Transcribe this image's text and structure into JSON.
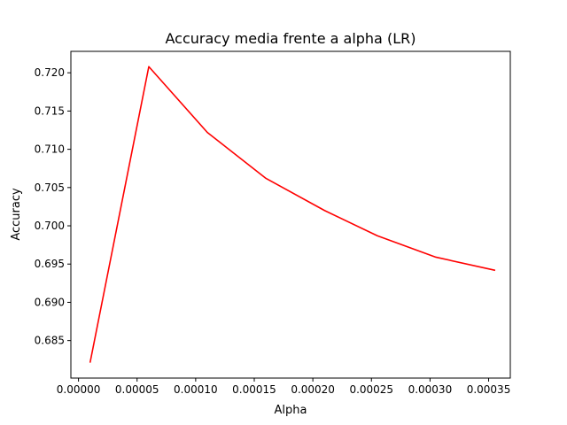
{
  "chart_data": {
    "type": "line",
    "title": "Accuracy media frente a alpha (LR)",
    "xlabel": "Alpha",
    "ylabel": "Accuracy",
    "grid": false,
    "xlim": [
      -6.5e-06,
      0.0003685
    ],
    "ylim": [
      0.6801,
      0.7228
    ],
    "x_ticks": [
      0.0,
      5e-05,
      0.0001,
      0.00015,
      0.0002,
      0.00025,
      0.0003,
      0.00035
    ],
    "x_tick_labels": [
      "0.00000",
      "0.00005",
      "0.00010",
      "0.00015",
      "0.00020",
      "0.00025",
      "0.00030",
      "0.00035"
    ],
    "y_ticks": [
      0.685,
      0.69,
      0.695,
      0.7,
      0.705,
      0.71,
      0.715,
      0.72
    ],
    "y_tick_labels": [
      "0.685",
      "0.690",
      "0.695",
      "0.700",
      "0.705",
      "0.710",
      "0.715",
      "0.720"
    ],
    "series": [
      {
        "color": "#ff0000",
        "x": [
          1e-05,
          6e-05,
          0.00011,
          0.00016,
          0.00021,
          0.000255,
          0.000305,
          0.000355
        ],
        "y": [
          0.6822,
          0.7208,
          0.7122,
          0.7062,
          0.702,
          0.6987,
          0.6959,
          0.6942
        ]
      }
    ]
  }
}
